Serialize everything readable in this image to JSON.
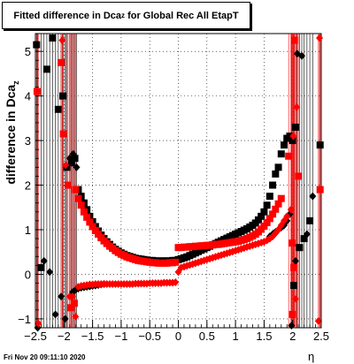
{
  "chart_data": {
    "type": "scatter",
    "title_prefix": "Fitted difference in Dca",
    "title_sub": "z",
    "title_suffix": " for Global Rec All EtapT",
    "xlabel": "η",
    "ylabel_prefix": "difference in Dca",
    "ylabel_sub": "z",
    "xlim": [
      -2.5,
      2.5
    ],
    "ylim": [
      -1.2,
      5.4
    ],
    "x_ticks": [
      "-2.5",
      "-2",
      "-1.5",
      "-1",
      "-0.5",
      "0",
      "0.5",
      "1",
      "1.5",
      "2",
      "2.5"
    ],
    "y_ticks": [
      "-1",
      "0",
      "1",
      "2",
      "3",
      "4",
      "5"
    ],
    "grid": true,
    "series": [
      {
        "color": "#000000",
        "outer": [
          [
            -2.48,
            5.15
          ],
          [
            -2.46,
            -1.25
          ],
          [
            -2.4,
            0.15
          ],
          [
            -2.35,
            0.3
          ],
          [
            -2.3,
            4.6
          ],
          [
            -2.25,
            0.05
          ],
          [
            -2.2,
            5.3
          ],
          [
            -2.15,
            -0.9
          ],
          [
            -2.1,
            3.7
          ],
          [
            -2.05,
            -0.5
          ],
          [
            -2.02,
            4.0
          ],
          [
            -1.98,
            -1.0
          ],
          [
            -1.95,
            2.4
          ],
          [
            -1.9,
            2.6
          ],
          [
            -1.87,
            2.5
          ],
          [
            -1.84,
            2.7
          ],
          [
            -1.81,
            2.6
          ],
          [
            -1.78,
            2.4
          ]
        ],
        "upper": [
          [
            -1.75,
            1.9
          ],
          [
            -1.7,
            1.75
          ],
          [
            -1.65,
            1.6
          ],
          [
            -1.6,
            1.45
          ],
          [
            -1.55,
            1.3
          ],
          [
            -1.5,
            1.18
          ],
          [
            -1.45,
            1.07
          ],
          [
            -1.4,
            0.97
          ],
          [
            -1.35,
            0.88
          ],
          [
            -1.3,
            0.8
          ],
          [
            -1.25,
            0.73
          ],
          [
            -1.2,
            0.67
          ],
          [
            -1.15,
            0.61
          ],
          [
            -1.1,
            0.56
          ],
          [
            -1.05,
            0.52
          ],
          [
            -1.0,
            0.48
          ],
          [
            -0.95,
            0.45
          ],
          [
            -0.9,
            0.42
          ],
          [
            -0.85,
            0.4
          ],
          [
            -0.8,
            0.38
          ],
          [
            -0.75,
            0.36
          ],
          [
            -0.7,
            0.35
          ],
          [
            -0.65,
            0.34
          ],
          [
            -0.6,
            0.33
          ],
          [
            -0.55,
            0.32
          ],
          [
            -0.5,
            0.31
          ],
          [
            -0.45,
            0.31
          ],
          [
            -0.4,
            0.3
          ],
          [
            -0.35,
            0.3
          ],
          [
            -0.3,
            0.3
          ],
          [
            -0.25,
            0.3
          ],
          [
            -0.2,
            0.3
          ],
          [
            -0.15,
            0.3
          ],
          [
            -0.1,
            0.31
          ],
          [
            -0.05,
            0.31
          ],
          [
            0.0,
            0.33
          ],
          [
            0.05,
            0.35
          ],
          [
            0.1,
            0.37
          ],
          [
            0.15,
            0.39
          ],
          [
            0.2,
            0.42
          ],
          [
            0.25,
            0.45
          ],
          [
            0.3,
            0.48
          ],
          [
            0.35,
            0.51
          ],
          [
            0.4,
            0.54
          ],
          [
            0.45,
            0.57
          ],
          [
            0.5,
            0.6
          ],
          [
            0.55,
            0.63
          ],
          [
            0.6,
            0.66
          ],
          [
            0.65,
            0.69
          ],
          [
            0.7,
            0.72
          ],
          [
            0.75,
            0.75
          ],
          [
            0.8,
            0.78
          ],
          [
            0.85,
            0.81
          ],
          [
            0.9,
            0.84
          ],
          [
            0.95,
            0.87
          ],
          [
            1.0,
            0.9
          ],
          [
            1.05,
            0.93
          ],
          [
            1.1,
            0.96
          ],
          [
            1.15,
            0.99
          ],
          [
            1.2,
            1.02
          ],
          [
            1.25,
            1.06
          ],
          [
            1.3,
            1.1
          ],
          [
            1.35,
            1.15
          ],
          [
            1.4,
            1.22
          ],
          [
            1.45,
            1.3
          ],
          [
            1.5,
            1.4
          ],
          [
            1.55,
            1.55
          ],
          [
            1.6,
            1.75
          ],
          [
            1.65,
            2.0
          ],
          [
            1.7,
            2.25
          ],
          [
            1.75,
            2.4
          ],
          [
            1.8,
            2.7
          ],
          [
            1.85,
            2.9
          ],
          [
            1.9,
            3.05
          ],
          [
            1.95,
            3.1
          ],
          [
            2.0,
            3.0
          ]
        ],
        "lower": [
          [
            -1.85,
            -0.4
          ],
          [
            -1.8,
            -0.35
          ],
          [
            -1.75,
            -0.32
          ],
          [
            -1.7,
            -0.3
          ],
          [
            -1.65,
            -0.29
          ],
          [
            -1.6,
            -0.28
          ],
          [
            -1.55,
            -0.27
          ],
          [
            -1.5,
            -0.26
          ],
          [
            -1.45,
            -0.25
          ],
          [
            -1.4,
            -0.24
          ],
          [
            -1.35,
            -0.23
          ],
          [
            -1.3,
            -0.22
          ]
        ],
        "right_outer": [
          [
            2.05,
            3.3
          ],
          [
            2.08,
            4.95
          ],
          [
            2.12,
            0.6
          ],
          [
            2.16,
            4.9
          ],
          [
            2.2,
            0.8
          ],
          [
            2.25,
            0.9
          ],
          [
            2.3,
            1.2
          ],
          [
            2.35,
            1.75
          ],
          [
            2.48,
            2.9
          ],
          [
            2.05,
            0.3
          ],
          [
            2.02,
            -0.25
          ],
          [
            1.98,
            -1.15
          ]
        ],
        "right_mid": [
          [
            1.6,
            0.85
          ],
          [
            1.65,
            0.9
          ],
          [
            1.7,
            0.95
          ],
          [
            1.75,
            1.0
          ],
          [
            1.8,
            1.05
          ],
          [
            1.85,
            1.1
          ],
          [
            1.9,
            1.2
          ],
          [
            1.95,
            1.35
          ]
        ]
      },
      {
        "color": "#ff0000",
        "outer": [
          [
            -2.47,
            4.1
          ],
          [
            -2.45,
            -1.1
          ],
          [
            -2.05,
            4.75
          ],
          [
            -2.03,
            5.25
          ],
          [
            -2.01,
            3.15
          ],
          [
            -1.97,
            2.45
          ],
          [
            -1.93,
            2.0
          ],
          [
            -1.9,
            -0.5
          ],
          [
            -1.88,
            -0.75
          ],
          [
            -1.85,
            -0.5
          ],
          [
            -1.82,
            -0.65
          ],
          [
            -1.8,
            -0.95
          ]
        ],
        "upper": [
          [
            -1.8,
            1.9
          ],
          [
            -1.75,
            1.7
          ],
          [
            -1.7,
            1.55
          ],
          [
            -1.65,
            1.4
          ],
          [
            -1.6,
            1.28
          ],
          [
            -1.55,
            1.17
          ],
          [
            -1.5,
            1.07
          ],
          [
            -1.45,
            0.98
          ],
          [
            -1.4,
            0.9
          ],
          [
            -1.35,
            0.82
          ],
          [
            -1.3,
            0.75
          ],
          [
            -1.25,
            0.69
          ],
          [
            -1.2,
            0.63
          ],
          [
            -1.15,
            0.58
          ],
          [
            -1.1,
            0.53
          ],
          [
            -1.05,
            0.49
          ],
          [
            -1.0,
            0.45
          ],
          [
            -0.95,
            0.42
          ],
          [
            -0.9,
            0.39
          ],
          [
            -0.85,
            0.37
          ],
          [
            -0.8,
            0.35
          ],
          [
            -0.75,
            0.33
          ],
          [
            -0.7,
            0.31
          ],
          [
            -0.65,
            0.3
          ],
          [
            -0.6,
            0.29
          ],
          [
            -0.55,
            0.28
          ],
          [
            -0.5,
            0.27
          ],
          [
            -0.45,
            0.26
          ],
          [
            -0.4,
            0.26
          ],
          [
            -0.35,
            0.25
          ],
          [
            -0.3,
            0.25
          ],
          [
            -0.25,
            0.25
          ],
          [
            -0.2,
            0.25
          ],
          [
            -0.15,
            0.26
          ],
          [
            -0.1,
            0.26
          ],
          [
            -0.05,
            0.27
          ],
          [
            0.0,
            0.6
          ],
          [
            0.05,
            0.6
          ],
          [
            0.1,
            0.61
          ],
          [
            0.15,
            0.61
          ],
          [
            0.2,
            0.62
          ],
          [
            0.25,
            0.62
          ],
          [
            0.3,
            0.63
          ],
          [
            0.35,
            0.63
          ],
          [
            0.4,
            0.64
          ],
          [
            0.45,
            0.64
          ],
          [
            0.5,
            0.65
          ],
          [
            0.55,
            0.65
          ],
          [
            0.6,
            0.66
          ],
          [
            0.65,
            0.67
          ],
          [
            0.7,
            0.67
          ],
          [
            0.75,
            0.68
          ],
          [
            0.8,
            0.69
          ],
          [
            0.85,
            0.7
          ],
          [
            0.9,
            0.71
          ],
          [
            0.95,
            0.72
          ],
          [
            1.0,
            0.73
          ],
          [
            1.05,
            0.74
          ],
          [
            1.1,
            0.76
          ],
          [
            1.15,
            0.78
          ],
          [
            1.2,
            0.8
          ],
          [
            1.25,
            0.83
          ],
          [
            1.3,
            0.86
          ],
          [
            1.35,
            0.9
          ],
          [
            1.4,
            0.95
          ],
          [
            1.45,
            1.01
          ],
          [
            1.5,
            1.08
          ],
          [
            1.55,
            1.16
          ],
          [
            1.6,
            1.25
          ],
          [
            1.65,
            1.35
          ],
          [
            1.7,
            1.46
          ],
          [
            1.75,
            1.58
          ],
          [
            1.8,
            1.7
          ]
        ],
        "lower": [
          [
            -1.75,
            -0.28
          ],
          [
            -1.7,
            -0.26
          ],
          [
            -1.65,
            -0.25
          ],
          [
            -1.6,
            -0.24
          ],
          [
            -1.55,
            -0.23
          ],
          [
            -1.5,
            -0.23
          ],
          [
            -1.45,
            -0.22
          ],
          [
            -1.4,
            -0.22
          ],
          [
            -1.35,
            -0.22
          ],
          [
            -1.3,
            -0.22
          ],
          [
            -1.25,
            -0.22
          ],
          [
            -1.2,
            -0.22
          ],
          [
            -1.15,
            -0.22
          ],
          [
            -1.1,
            -0.22
          ],
          [
            -1.05,
            -0.22
          ],
          [
            -1.0,
            -0.22
          ],
          [
            -0.95,
            -0.22
          ],
          [
            -0.9,
            -0.22
          ],
          [
            -0.85,
            -0.22
          ],
          [
            -0.8,
            -0.22
          ],
          [
            -0.75,
            -0.21
          ],
          [
            -0.7,
            -0.21
          ],
          [
            -0.65,
            -0.21
          ],
          [
            -0.6,
            -0.21
          ],
          [
            -0.55,
            -0.21
          ],
          [
            -0.5,
            -0.2
          ],
          [
            -0.45,
            -0.2
          ],
          [
            -0.4,
            -0.2
          ],
          [
            -0.35,
            -0.2
          ],
          [
            -0.3,
            -0.2
          ],
          [
            -0.25,
            -0.19
          ],
          [
            -0.2,
            -0.19
          ],
          [
            -0.15,
            -0.19
          ],
          [
            -0.1,
            -0.19
          ],
          [
            -0.05,
            -0.18
          ],
          [
            0.0,
            0.05
          ],
          [
            0.05,
            0.15
          ],
          [
            0.1,
            0.17
          ],
          [
            0.15,
            0.19
          ],
          [
            0.2,
            0.21
          ],
          [
            0.25,
            0.23
          ],
          [
            0.3,
            0.25
          ],
          [
            0.35,
            0.27
          ],
          [
            0.4,
            0.29
          ],
          [
            0.45,
            0.31
          ],
          [
            0.5,
            0.33
          ],
          [
            0.55,
            0.35
          ],
          [
            0.6,
            0.37
          ],
          [
            0.65,
            0.39
          ],
          [
            0.7,
            0.41
          ],
          [
            0.75,
            0.43
          ],
          [
            0.8,
            0.45
          ],
          [
            0.85,
            0.47
          ],
          [
            0.9,
            0.49
          ],
          [
            0.95,
            0.51
          ],
          [
            1.0,
            0.53
          ],
          [
            1.05,
            0.55
          ],
          [
            1.1,
            0.57
          ],
          [
            1.15,
            0.59
          ],
          [
            1.2,
            0.61
          ],
          [
            1.25,
            0.63
          ],
          [
            1.3,
            0.65
          ],
          [
            1.35,
            0.67
          ],
          [
            1.4,
            0.69
          ],
          [
            1.45,
            0.71
          ],
          [
            1.5,
            0.73
          ],
          [
            1.55,
            0.76
          ],
          [
            1.6,
            0.8
          ],
          [
            1.65,
            0.85
          ],
          [
            1.7,
            0.92
          ],
          [
            1.75,
            1.0
          ],
          [
            1.8,
            1.1
          ],
          [
            1.85,
            1.2
          ],
          [
            1.9,
            1.3
          ]
        ],
        "right_outer": [
          [
            1.93,
            2.65
          ],
          [
            1.97,
            1.45
          ],
          [
            1.99,
            0.7
          ],
          [
            2.01,
            3.1
          ],
          [
            2.03,
            5.25
          ],
          [
            2.07,
            3.75
          ],
          [
            2.1,
            2.2
          ],
          [
            2.47,
            5.3
          ],
          [
            2.48,
            1.9
          ],
          [
            2.45,
            -1.05
          ],
          [
            2.0,
            -0.9
          ],
          [
            2.05,
            -0.55
          ],
          [
            2.02,
            0.15
          ]
        ],
        "right_mid": []
      }
    ]
  },
  "footer_text": "Fri Nov 20 09:11:10 2020"
}
